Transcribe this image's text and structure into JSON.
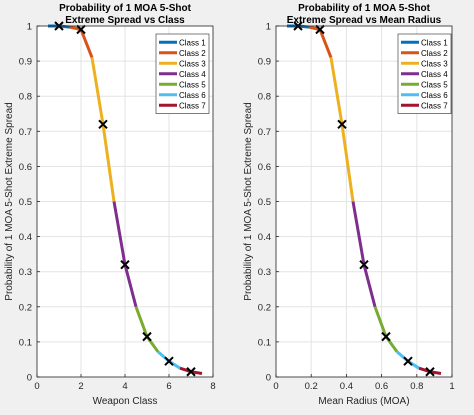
{
  "chart_data": [
    {
      "type": "line",
      "title_lines": [
        "Probability of 1 MOA 5-Shot",
        "Extreme Spread vs Class"
      ],
      "xlabel": "Weapon Class",
      "ylabel": "Probability of 1 MOA 5-Shot Extreme Spread",
      "xlim": [
        0,
        8
      ],
      "ylim": [
        0,
        1
      ],
      "xticks": [
        0,
        2,
        4,
        6,
        8
      ],
      "yticks": [
        0,
        0.1,
        0.2,
        0.3,
        0.4,
        0.5,
        0.6,
        0.7,
        0.8,
        0.9,
        1
      ],
      "grid": true,
      "legend_position": "top-right",
      "series": [
        {
          "name": "Class 1",
          "x": [
            0.5,
            1.0,
            1.5
          ],
          "y": [
            1.0,
            1.0,
            0.997
          ]
        },
        {
          "name": "Class 2",
          "x": [
            1.5,
            2.0,
            2.5
          ],
          "y": [
            0.997,
            0.99,
            0.91
          ]
        },
        {
          "name": "Class 3",
          "x": [
            2.5,
            3.0,
            3.5
          ],
          "y": [
            0.91,
            0.72,
            0.5
          ]
        },
        {
          "name": "Class 4",
          "x": [
            3.5,
            4.0,
            4.5
          ],
          "y": [
            0.5,
            0.32,
            0.2
          ]
        },
        {
          "name": "Class 5",
          "x": [
            4.5,
            5.0,
            5.5
          ],
          "y": [
            0.2,
            0.115,
            0.072
          ]
        },
        {
          "name": "Class 6",
          "x": [
            5.5,
            6.0,
            6.5
          ],
          "y": [
            0.072,
            0.045,
            0.025
          ]
        },
        {
          "name": "Class 7",
          "x": [
            6.5,
            7.0,
            7.5
          ],
          "y": [
            0.025,
            0.015,
            0.01
          ]
        }
      ],
      "markers": {
        "x": [
          1,
          2,
          3,
          4,
          5,
          6,
          7
        ],
        "y": [
          1.0,
          0.99,
          0.72,
          0.32,
          0.115,
          0.045,
          0.015
        ]
      }
    },
    {
      "type": "line",
      "title_lines": [
        "Probability of 1 MOA 5-Shot",
        "Extreme Spread vs Mean Radius"
      ],
      "xlabel": "Mean Radius (MOA)",
      "ylabel": "Probability of 1 MOA 5-Shot Extreme Spread",
      "xlim": [
        0,
        1
      ],
      "ylim": [
        0,
        1
      ],
      "xticks": [
        0,
        0.2,
        0.4,
        0.6,
        0.8,
        1
      ],
      "yticks": [
        0,
        0.1,
        0.2,
        0.3,
        0.4,
        0.5,
        0.6,
        0.7,
        0.8,
        0.9,
        1
      ],
      "grid": true,
      "legend_position": "top-right",
      "series": [
        {
          "name": "Class 1",
          "x": [
            0.0625,
            0.125,
            0.1875
          ],
          "y": [
            1.0,
            1.0,
            0.997
          ]
        },
        {
          "name": "Class 2",
          "x": [
            0.1875,
            0.25,
            0.3125
          ],
          "y": [
            0.997,
            0.99,
            0.91
          ]
        },
        {
          "name": "Class 3",
          "x": [
            0.3125,
            0.375,
            0.4375
          ],
          "y": [
            0.91,
            0.72,
            0.5
          ]
        },
        {
          "name": "Class 4",
          "x": [
            0.4375,
            0.5,
            0.5625
          ],
          "y": [
            0.5,
            0.32,
            0.2
          ]
        },
        {
          "name": "Class 5",
          "x": [
            0.5625,
            0.625,
            0.6875
          ],
          "y": [
            0.2,
            0.115,
            0.072
          ]
        },
        {
          "name": "Class 6",
          "x": [
            0.6875,
            0.75,
            0.8125
          ],
          "y": [
            0.072,
            0.045,
            0.025
          ]
        },
        {
          "name": "Class 7",
          "x": [
            0.8125,
            0.875,
            0.9375
          ],
          "y": [
            0.025,
            0.015,
            0.01
          ]
        }
      ],
      "markers": {
        "x": [
          0.125,
          0.25,
          0.375,
          0.5,
          0.625,
          0.75,
          0.875
        ],
        "y": [
          1.0,
          0.99,
          0.72,
          0.32,
          0.115,
          0.045,
          0.015
        ]
      }
    }
  ],
  "series_colors": [
    "#0072bd",
    "#d95319",
    "#edb120",
    "#7e2f8e",
    "#77ac30",
    "#4dbeee",
    "#a2142f"
  ]
}
